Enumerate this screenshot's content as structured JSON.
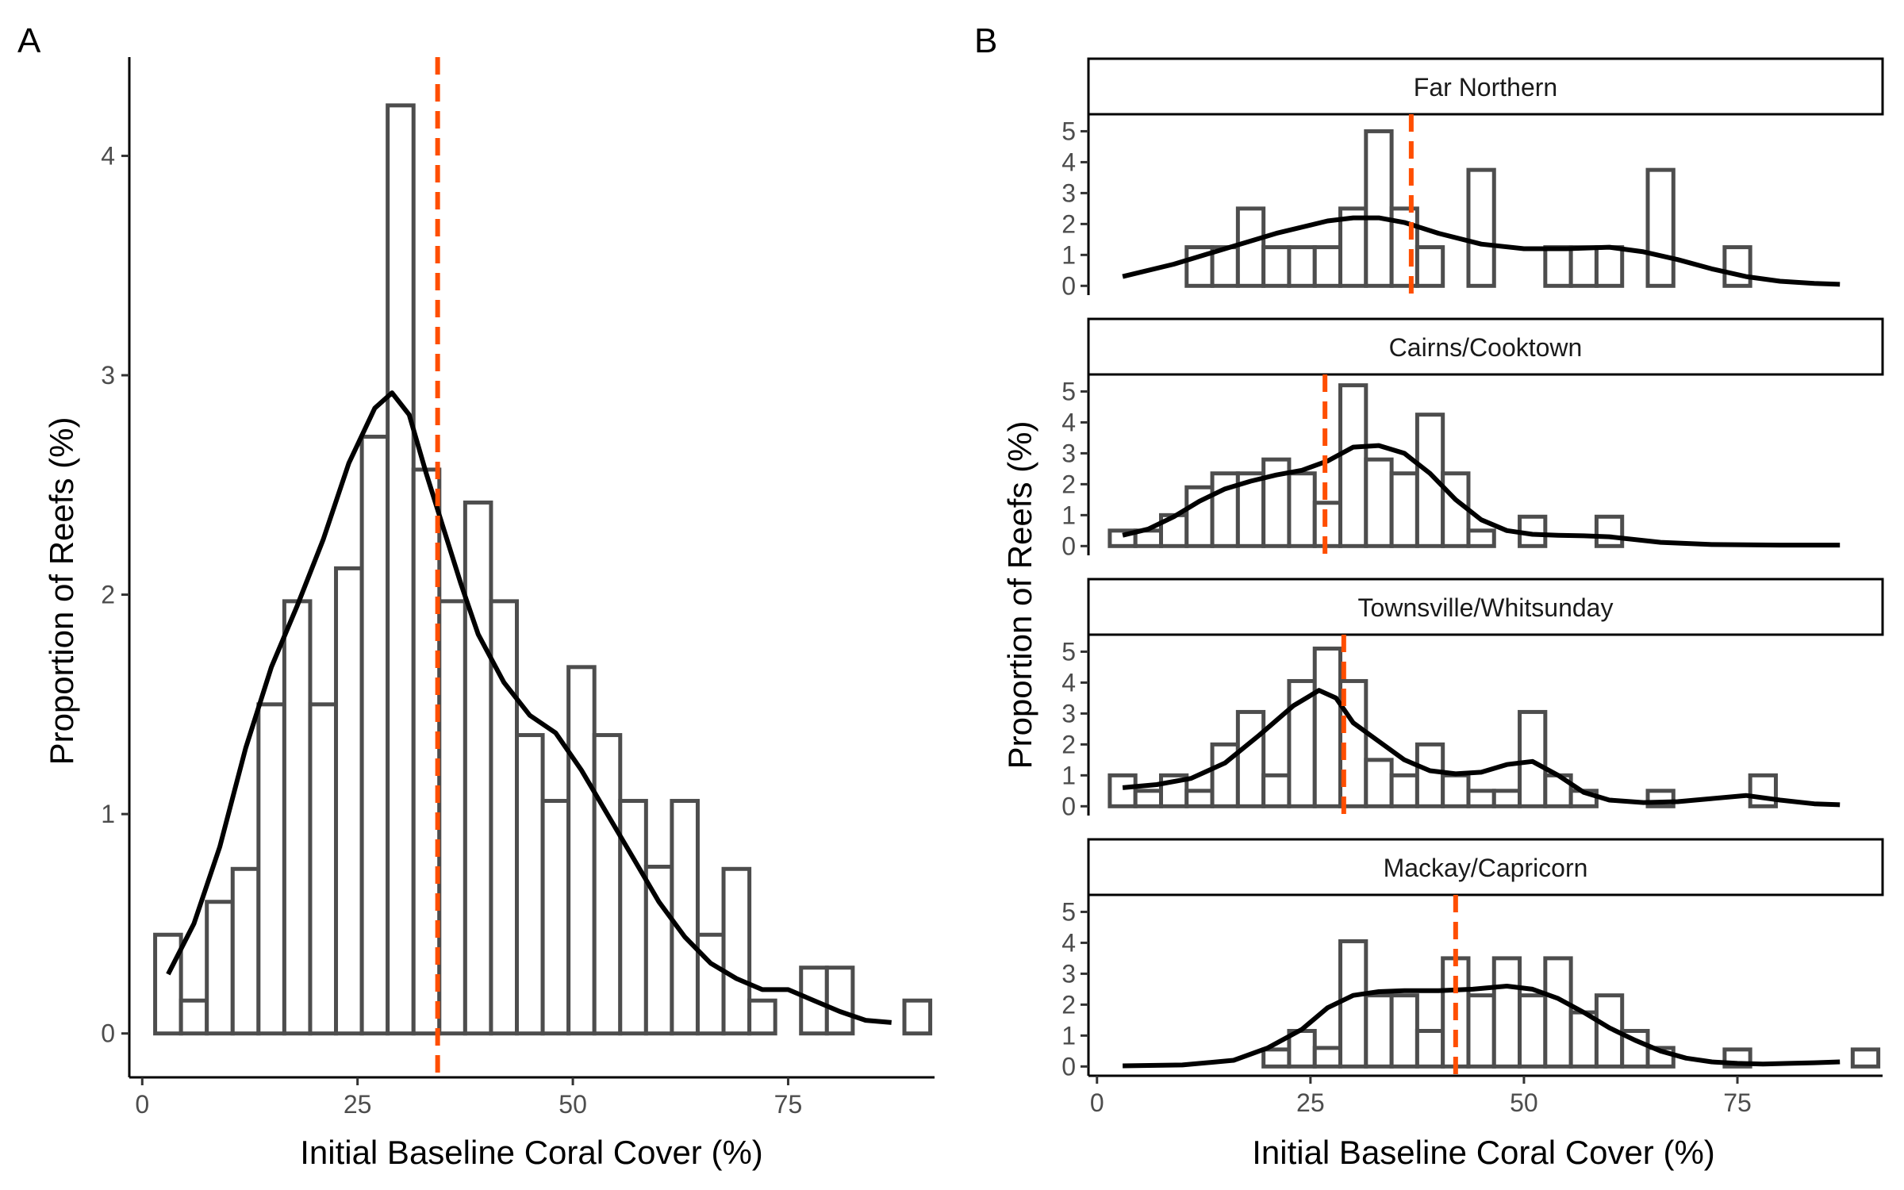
{
  "chart_data": [
    {
      "panel": "A",
      "type": "bar",
      "xlabel": "Initial Baseline Coral Cover (%)",
      "ylabel": "Proportion of Reefs (%)",
      "xlim": [
        -1.5,
        92
      ],
      "ylim": [
        -0.2,
        4.45
      ],
      "xticks": [
        0,
        25,
        50,
        75
      ],
      "yticks": [
        0,
        1,
        2,
        3,
        4
      ],
      "bins": {
        "start": 1.5,
        "width": 3,
        "count": 30
      },
      "values": [
        0.45,
        0.15,
        0.6,
        0.75,
        1.5,
        1.97,
        1.5,
        2.12,
        2.72,
        4.23,
        2.57,
        1.97,
        2.42,
        1.97,
        1.36,
        1.06,
        1.67,
        1.36,
        1.06,
        0.76,
        1.06,
        0.45,
        0.75,
        0.15,
        0,
        0.3,
        0.3,
        0,
        0,
        0.15
      ],
      "density": {
        "x": [
          3,
          6,
          9,
          12,
          15,
          18,
          21,
          24,
          27,
          29,
          31,
          33,
          35,
          37,
          39,
          42,
          45,
          48,
          51,
          54,
          57,
          60,
          63,
          66,
          69,
          72,
          75,
          78,
          81,
          84,
          87
        ],
        "y": [
          0.27,
          0.5,
          0.85,
          1.3,
          1.67,
          1.95,
          2.25,
          2.6,
          2.85,
          2.92,
          2.82,
          2.55,
          2.3,
          2.05,
          1.82,
          1.6,
          1.45,
          1.37,
          1.2,
          1.0,
          0.8,
          0.6,
          0.44,
          0.32,
          0.25,
          0.2,
          0.2,
          0.15,
          0.1,
          0.06,
          0.05
        ]
      },
      "mean_line": 34.3
    },
    {
      "panel": "B",
      "type": "bar",
      "xlabel": "Initial Baseline Coral Cover (%)",
      "ylabel": "Proportion of Reefs (%)",
      "xlim": [
        -1,
        92
      ],
      "ylim": [
        -0.3,
        5.55
      ],
      "xticks": [
        0,
        25,
        50,
        75
      ],
      "yticks": [
        0,
        1,
        2,
        3,
        4,
        5
      ],
      "bins": {
        "start": 1.5,
        "width": 3,
        "count": 30
      },
      "facets": [
        {
          "name": "Far Northern",
          "values": [
            0,
            0,
            0,
            1.25,
            1.25,
            2.5,
            1.25,
            1.25,
            1.25,
            2.5,
            5.0,
            2.5,
            1.25,
            0,
            3.75,
            0,
            0,
            1.25,
            1.25,
            1.25,
            0,
            3.75,
            0,
            0,
            1.25,
            0,
            0,
            0,
            0,
            0
          ],
          "density": {
            "x": [
              3,
              9,
              15,
              21,
              27,
              30,
              33,
              36,
              40,
              45,
              50,
              55,
              60,
              64,
              68,
              72,
              76,
              80,
              84,
              87
            ],
            "y": [
              0.3,
              0.7,
              1.2,
              1.7,
              2.1,
              2.2,
              2.2,
              2.05,
              1.7,
              1.35,
              1.2,
              1.2,
              1.25,
              1.1,
              0.85,
              0.55,
              0.3,
              0.15,
              0.08,
              0.05
            ]
          },
          "mean_line": 36.8
        },
        {
          "name": "Cairns/Cooktown",
          "values": [
            0.5,
            0.5,
            1.0,
            1.9,
            2.35,
            2.35,
            2.8,
            2.35,
            1.4,
            5.2,
            2.8,
            2.35,
            4.25,
            2.35,
            0.5,
            0,
            0.95,
            0,
            0,
            0.95,
            0,
            0,
            0,
            0,
            0,
            0,
            0,
            0,
            0,
            0
          ],
          "density": {
            "x": [
              3,
              6,
              9,
              12,
              15,
              18,
              21,
              24,
              27,
              30,
              33,
              36,
              39,
              42,
              45,
              48,
              51,
              54,
              57,
              60,
              66,
              72,
              80,
              87
            ],
            "y": [
              0.35,
              0.55,
              0.95,
              1.45,
              1.85,
              2.1,
              2.3,
              2.45,
              2.75,
              3.2,
              3.25,
              3.0,
              2.35,
              1.5,
              0.85,
              0.5,
              0.38,
              0.35,
              0.33,
              0.3,
              0.12,
              0.05,
              0.03,
              0.03
            ]
          },
          "mean_line": 26.7
        },
        {
          "name": "Townsville/Whitsunday",
          "values": [
            1.0,
            0.5,
            1.0,
            0.5,
            2.0,
            3.05,
            1.0,
            4.05,
            5.1,
            4.05,
            1.5,
            1.0,
            2.0,
            1.0,
            0.5,
            0.5,
            3.05,
            1.0,
            0.5,
            0,
            0,
            0.5,
            0,
            0,
            0,
            1.0,
            0,
            0,
            0,
            0
          ],
          "density": {
            "x": [
              3,
              7,
              11,
              15,
              19,
              23,
              26,
              28,
              30,
              33,
              36,
              39,
              42,
              45,
              48,
              51,
              54,
              57,
              60,
              64,
              68,
              72,
              76,
              80,
              84,
              87
            ],
            "y": [
              0.6,
              0.7,
              0.9,
              1.4,
              2.3,
              3.25,
              3.75,
              3.5,
              2.7,
              2.1,
              1.5,
              1.15,
              1.05,
              1.1,
              1.35,
              1.45,
              1.0,
              0.45,
              0.2,
              0.12,
              0.15,
              0.25,
              0.35,
              0.2,
              0.08,
              0.05
            ]
          },
          "mean_line": 28.9
        },
        {
          "name": "Mackay/Capricorn",
          "values": [
            0,
            0,
            0,
            0,
            0,
            0,
            0.55,
            1.15,
            0.6,
            4.05,
            2.3,
            2.3,
            1.15,
            3.5,
            2.3,
            3.5,
            2.3,
            3.5,
            1.75,
            2.3,
            1.15,
            0.6,
            0,
            0,
            0.55,
            0,
            0,
            0,
            0,
            0.55
          ],
          "density": {
            "x": [
              3,
              10,
              16,
              20,
              24,
              27,
              30,
              33,
              36,
              40,
              44,
              48,
              51,
              54,
              57,
              60,
              63,
              66,
              69,
              72,
              75,
              78,
              81,
              84,
              87
            ],
            "y": [
              0.02,
              0.05,
              0.2,
              0.6,
              1.2,
              1.9,
              2.3,
              2.42,
              2.45,
              2.45,
              2.5,
              2.6,
              2.5,
              2.2,
              1.75,
              1.25,
              0.85,
              0.5,
              0.27,
              0.15,
              0.1,
              0.08,
              0.1,
              0.12,
              0.15
            ]
          },
          "mean_line": 42.0
        }
      ]
    }
  ],
  "labels": {
    "panel_a": "A",
    "panel_b": "B"
  },
  "colors": {
    "bar_outline": "#4d4d4d",
    "bar_fill": "#ffffff",
    "density": "#000000",
    "mean_line": "#ff4e00"
  }
}
